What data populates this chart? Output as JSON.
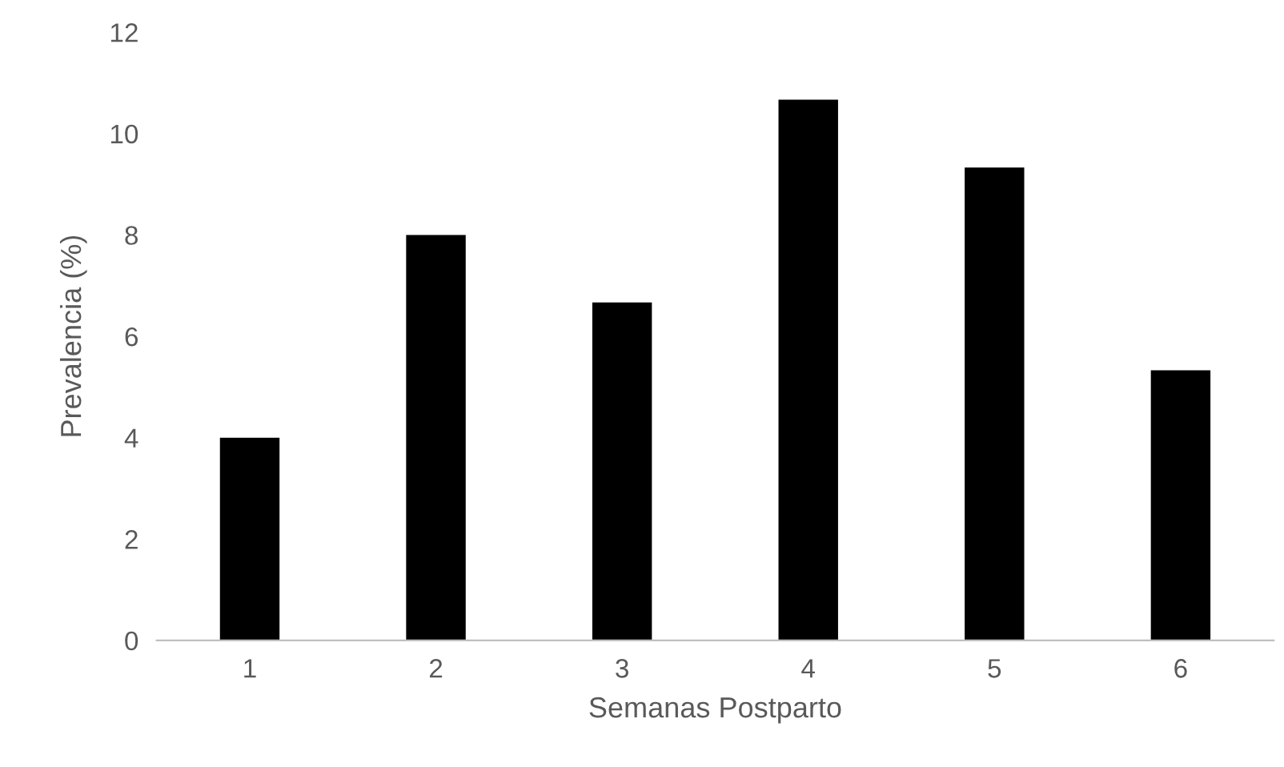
{
  "chart_data": {
    "type": "bar",
    "xlabel": "Semanas Postparto",
    "ylabel": "Prevalencia (%)",
    "categories": [
      "1",
      "2",
      "3",
      "4",
      "5",
      "6"
    ],
    "values": [
      4,
      8,
      6.67,
      10.67,
      9.33,
      5.33
    ],
    "color": "#000000",
    "ylim": [
      0,
      12
    ],
    "yticks": [
      0,
      2,
      4,
      6,
      8,
      10,
      12
    ],
    "grid": false
  }
}
